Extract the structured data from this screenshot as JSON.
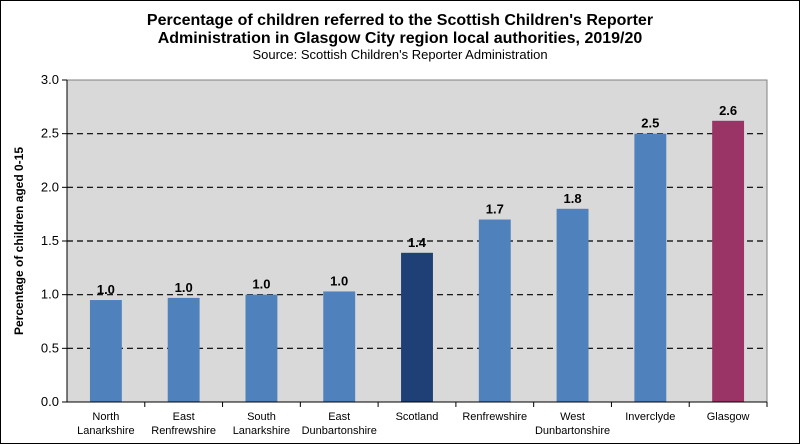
{
  "chart_data": {
    "type": "bar",
    "title_lines": [
      "Percentage of children referred to the Scottish Children's Reporter",
      "Administration in Glasgow City region local authorities, 2019/20"
    ],
    "subtitle": "Source: Scottish Children's Reporter Administration",
    "xlabel": "",
    "ylabel": "Percentage of children aged 0-15",
    "ylim": [
      0,
      3.0
    ],
    "yticks": [
      "0.0",
      "0.5",
      "1.0",
      "1.5",
      "2.0",
      "2.5",
      "3.0"
    ],
    "grid": "horizontal-dashed",
    "plot_background": "#d9d9d9",
    "categories": [
      [
        "North",
        "Lanarkshire"
      ],
      [
        "East",
        "Renfrewshire"
      ],
      [
        "South",
        "Lanarkshire"
      ],
      [
        "East",
        "Dunbartonshire"
      ],
      [
        "Scotland"
      ],
      [
        "Renfrewshire"
      ],
      [
        "West",
        "Dunbartonshire"
      ],
      [
        "Inverclyde"
      ],
      [
        "Glasgow"
      ]
    ],
    "values": [
      0.95,
      0.97,
      1.0,
      1.03,
      1.39,
      1.7,
      1.8,
      2.5,
      2.62
    ],
    "data_labels": [
      "1.0",
      "1.0",
      "1.0",
      "1.0",
      "1.4",
      "1.7",
      "1.8",
      "2.5",
      "2.6"
    ],
    "colors": [
      "#4f81bd",
      "#4f81bd",
      "#4f81bd",
      "#4f81bd",
      "#1f3f77",
      "#4f81bd",
      "#4f81bd",
      "#4f81bd",
      "#9b3466"
    ]
  }
}
